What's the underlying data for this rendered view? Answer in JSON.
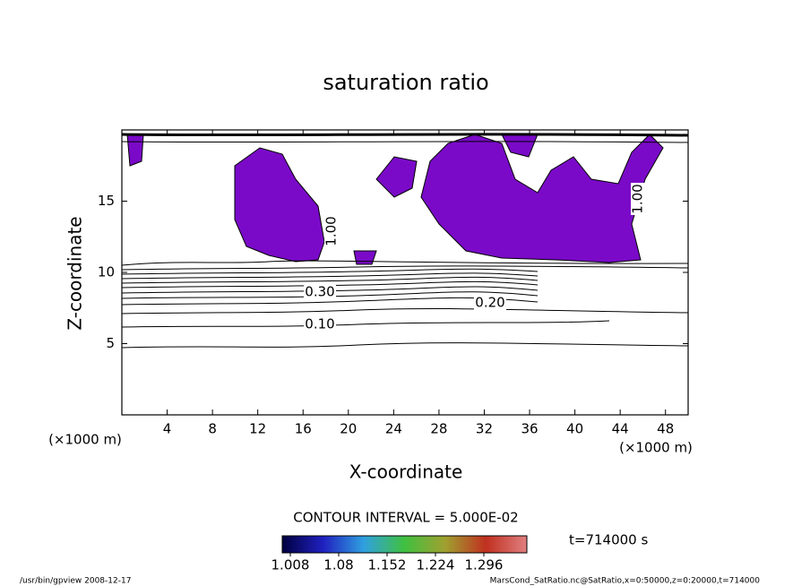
{
  "chart_data": {
    "type": "contour",
    "title": "saturation ratio",
    "x_label": "X-coordinate",
    "y_label": "Z-coordinate",
    "x_unit": "(×1000 m)",
    "y_unit": "(×1000 m)",
    "xlim": [
      0,
      50
    ],
    "xticks": [
      4,
      8,
      12,
      16,
      20,
      24,
      28,
      32,
      36,
      40,
      44,
      48
    ],
    "ylim": [
      0,
      20
    ],
    "yticks": [
      5,
      10,
      15
    ],
    "contour_labels": [
      "0.10",
      "0.20",
      "0.30",
      "1.00",
      "1.00"
    ],
    "contour_interval": "CONTOUR INTERVAL = 5.000E-02",
    "time_label": "t=714000 s",
    "colorbar": {
      "clim": [
        0.996,
        1.36
      ],
      "ticks": [
        1.008,
        1.08,
        1.152,
        1.224,
        1.296
      ],
      "colors": [
        "#000040",
        "#2020c0",
        "#30a0e0",
        "#40c040",
        "#a0a030",
        "#c03020",
        "#e08080"
      ]
    },
    "footer_left": "/usr/bin/gpview   2008-12-17",
    "footer_right": "MarsCond_SatRatio.nc@SatRatio,x=0:50000,z=0:20000,t=714000"
  }
}
